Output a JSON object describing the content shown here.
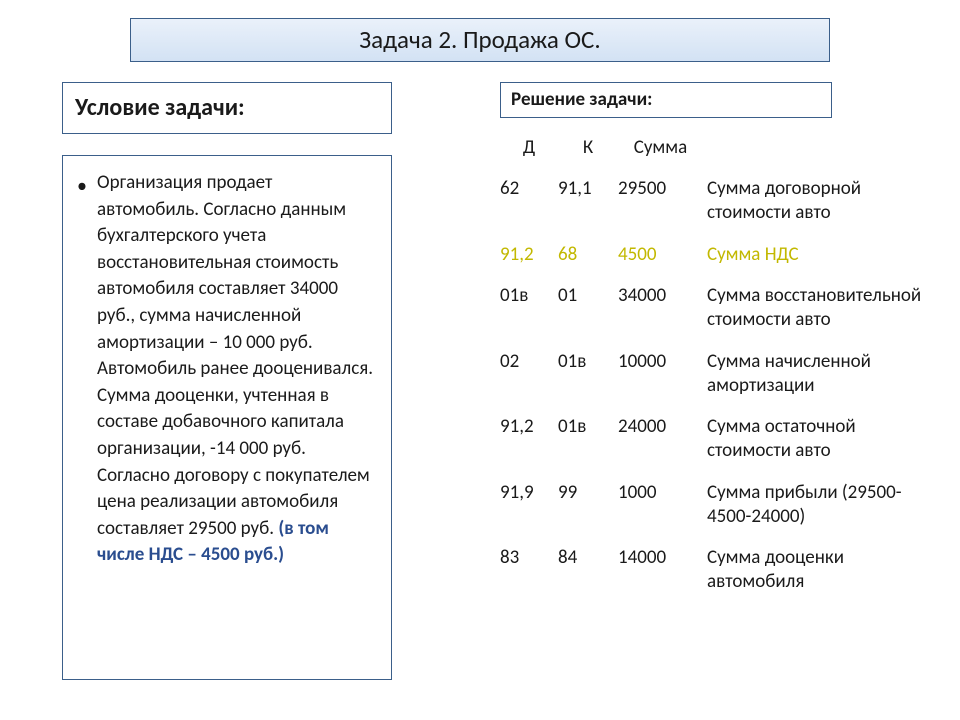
{
  "title": "Задача 2. Продажа ОС.",
  "condition_header": "Условие задачи:",
  "solution_header": "Решение задачи:",
  "condition_text_main": "Организация продает автомобиль. Согласно данным бухгалтерского учета восстановительная стоимость автомобиля составляет 34000 руб., сумма начисленной амортизации – 10 000 руб. Автомобиль ранее дооценивался. Сумма дооценки, учтенная в составе добавочного капитала организации, -14 000 руб. Согласно договору с покупателем цена реализации автомобиля составляет 29500 руб. ",
  "condition_text_bold": "(в том числе НДС – 4500 руб.)",
  "table": {
    "headers": {
      "d": "Д",
      "k": "К",
      "sum": "Сумма"
    },
    "rows": [
      {
        "d": "62",
        "k": "91,1",
        "sum": "29500",
        "desc": "Сумма договорной стоимости авто",
        "highlight": false
      },
      {
        "d": "91,2",
        "k": "68",
        "sum": "4500",
        "desc": "Сумма НДС",
        "highlight": true
      },
      {
        "d": "01в",
        "k": "01",
        "sum": "34000",
        "desc": "Сумма восстановительной стоимости авто",
        "highlight": false
      },
      {
        "d": "02",
        "k": "01в",
        "sum": "10000",
        "desc": "Сумма начисленной амортизации",
        "highlight": false
      },
      {
        "d": "91,2",
        "k": "01в",
        "sum": "24000",
        "desc": "Сумма остаточной стоимости авто",
        "highlight": false
      },
      {
        "d": "91,9",
        "k": "99",
        "sum": "1000",
        "desc": "Сумма прибыли (29500-4500-24000)",
        "highlight": false
      },
      {
        "d": "83",
        "k": "84",
        "sum": "14000",
        "desc": "Сумма дооценки автомобиля",
        "highlight": false
      }
    ]
  },
  "colors": {
    "border": "#3b5f8a",
    "title_bg_top": "#eaf1fa",
    "title_bg_bot": "#d3e2f4",
    "highlight_text": "#c2b800",
    "bold_blue": "#2a4d8f"
  }
}
